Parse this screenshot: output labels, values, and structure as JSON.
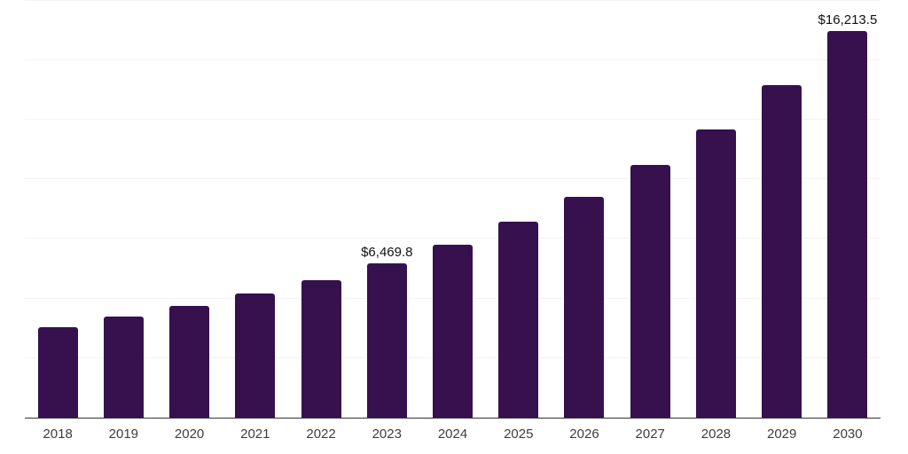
{
  "chart_data": {
    "type": "bar",
    "title": "",
    "xlabel": "",
    "ylabel": "",
    "categories": [
      "2018",
      "2019",
      "2020",
      "2021",
      "2022",
      "2023",
      "2024",
      "2025",
      "2026",
      "2027",
      "2028",
      "2029",
      "2030"
    ],
    "values": [
      3810,
      4240,
      4670,
      5190,
      5780,
      6469.8,
      7250,
      8210,
      9280,
      10620,
      12080,
      13960,
      16213.5
    ],
    "point_labels": [
      "",
      "",
      "",
      "",
      "",
      "$6,469.8",
      "",
      "",
      "",
      "",
      "",
      "",
      "$16,213.5"
    ],
    "ylim": [
      0,
      17520
    ],
    "grid_step": 2500,
    "grid_on": true,
    "legend_position": "none",
    "colors": {
      "bar_fill": "#36114E",
      "gridline": "#F3F3F3",
      "axis_line": "#333333",
      "tick_label": "#3D3D3D",
      "data_label": "#111111",
      "background": "#FFFFFF"
    }
  }
}
